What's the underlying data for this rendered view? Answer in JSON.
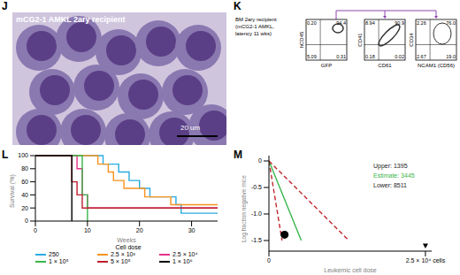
{
  "chart_data": [
    {
      "type": "image",
      "panel": "J",
      "title": "mCG2-1 AMKL 2ary recipient",
      "scale_bar": "20 um"
    },
    {
      "type": "flow",
      "panel": "K",
      "label_lines": [
        "BM 2ary recipient",
        "(mCG2-1 AMKL,",
        "latency 11 wks)"
      ],
      "plots": [
        {
          "xlabel": "GFP",
          "ylabel": "hCD45",
          "quadrants": [
            "0.20",
            "94.4",
            "5.09",
            "0.31"
          ]
        },
        {
          "xlabel": "CD61",
          "ylabel": "CD41",
          "quadrants": [
            "8.94",
            "90.9",
            "0.18",
            "0.02"
          ]
        },
        {
          "xlabel": "NCAM1 (CD56)",
          "ylabel": "CD34",
          "quadrants": [
            "2.26",
            "76.0",
            "2.67",
            "19.0"
          ]
        }
      ]
    },
    {
      "type": "line",
      "panel": "L",
      "xlabel": "Weeks",
      "ylabel": "Survival (%)",
      "line_style": "step",
      "xlim": [
        0,
        35
      ],
      "xticks": [
        0,
        10,
        20,
        30
      ],
      "ylim": [
        0,
        100
      ],
      "yticks": [
        0,
        20,
        40,
        60,
        80,
        100
      ],
      "legend": "bottom",
      "legend_title": "Cell dose",
      "series": [
        {
          "name": "250",
          "color": "#29abe2",
          "x": [
            0,
            13,
            16,
            18,
            20,
            22,
            27,
            28,
            35
          ],
          "values": [
            100,
            87,
            75,
            62,
            50,
            37,
            25,
            12,
            12
          ]
        },
        {
          "name": "2.5 × 10³",
          "color": "#f7931e",
          "x": [
            0,
            12,
            14,
            15,
            17,
            21,
            26,
            35
          ],
          "values": [
            100,
            87,
            75,
            62,
            50,
            37,
            25,
            25
          ]
        },
        {
          "name": "2.5 × 10⁴",
          "color": "#e8318a",
          "x": [
            0,
            8,
            9,
            10,
            35
          ],
          "values": [
            100,
            80,
            40,
            20,
            20
          ]
        },
        {
          "name": "1 × 10⁵",
          "color": "#39b54a",
          "x": [
            0,
            9,
            10
          ],
          "values": [
            100,
            40,
            0
          ]
        },
        {
          "name": "5 × 10⁵",
          "color": "#be1e2d",
          "x": [
            0,
            7,
            8,
            9,
            35
          ],
          "values": [
            100,
            60,
            40,
            20,
            20
          ]
        },
        {
          "name": "1 × 10⁶",
          "color": "#000000",
          "x": [
            0,
            7
          ],
          "values": [
            100,
            0
          ]
        }
      ]
    },
    {
      "type": "line",
      "panel": "M",
      "xlabel": "Leukemic cell dose",
      "ylabel": "Log fraction negative mice",
      "xlim": [
        0,
        26000
      ],
      "xticks": [
        0,
        {
          "value": 25000,
          "label": "2.5 × 10⁴ cells"
        }
      ],
      "ylim": [
        -1.7,
        0.1
      ],
      "yticks": [
        0,
        -0.5,
        {
          "value": -1,
          "label": "-1.0"
        },
        -1.5
      ],
      "annotations": [
        {
          "text": "Upper: 1395",
          "color": "#222222"
        },
        {
          "text": "Estimate: 3445",
          "color": "#39b54a"
        },
        {
          "text": "Lower: 8511",
          "color": "#222222"
        }
      ],
      "series": [
        {
          "type": "line",
          "color": "#c1272d",
          "line_style": "dashed",
          "x": [
            0,
            2092
          ],
          "values": [
            0,
            -1.5
          ]
        },
        {
          "type": "line",
          "color": "#39b54a",
          "line_style": "solid",
          "x": [
            0,
            5168
          ],
          "values": [
            0,
            -1.5
          ]
        },
        {
          "type": "line",
          "color": "#c1272d",
          "line_style": "dashed",
          "x": [
            0,
            12767
          ],
          "values": [
            0,
            -1.5
          ]
        },
        {
          "type": "scatter",
          "color": "#000000",
          "marker": "circle",
          "x": [
            2500
          ],
          "values": [
            -1.39
          ]
        },
        {
          "type": "scatter",
          "color": "#000000",
          "marker": "triangle-down",
          "x": [
            25000
          ],
          "values": [
            -1.6
          ]
        }
      ]
    }
  ]
}
